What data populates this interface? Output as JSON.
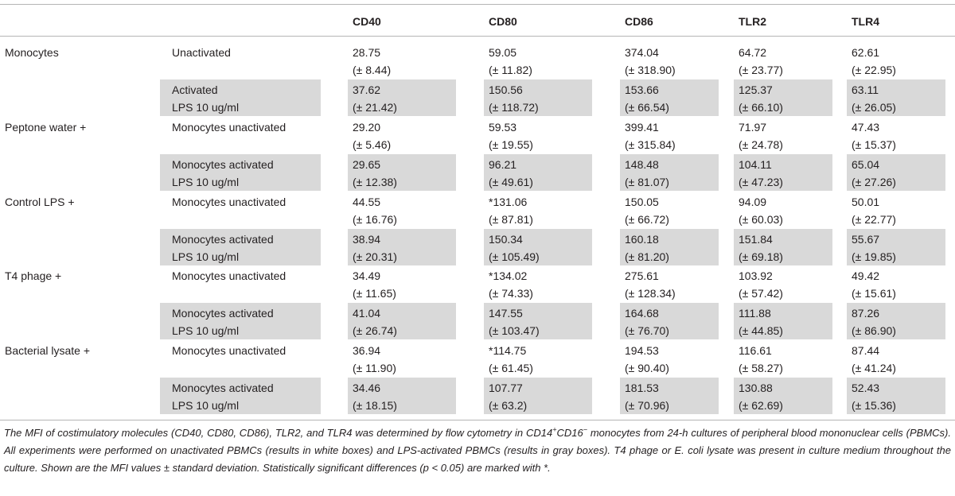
{
  "columns": [
    "CD40",
    "CD80",
    "CD86",
    "TLR2",
    "TLR4"
  ],
  "rows": [
    {
      "group": "Monocytes",
      "condition": [
        "Unactivated"
      ],
      "shaded": false,
      "values": [
        [
          "28.75",
          "(± 8.44)"
        ],
        [
          "59.05",
          "(± 11.82)"
        ],
        [
          "374.04",
          "(± 318.90)"
        ],
        [
          "64.72",
          "(± 23.77)"
        ],
        [
          "62.61",
          "(± 22.95)"
        ]
      ]
    },
    {
      "group": "",
      "condition": [
        "Activated",
        "LPS 10 ug/ml"
      ],
      "shaded": true,
      "values": [
        [
          "37.62",
          "(± 21.42)"
        ],
        [
          "150.56",
          "(± 118.72)"
        ],
        [
          "153.66",
          "(± 66.54)"
        ],
        [
          "125.37",
          "(± 66.10)"
        ],
        [
          "63.11",
          "(± 26.05)"
        ]
      ]
    },
    {
      "group": "Peptone water +",
      "condition": [
        "Monocytes unactivated"
      ],
      "shaded": false,
      "values": [
        [
          "29.20",
          "(± 5.46)"
        ],
        [
          "59.53",
          "(± 19.55)"
        ],
        [
          "399.41",
          "(± 315.84)"
        ],
        [
          "71.97",
          "(± 24.78)"
        ],
        [
          "47.43",
          "(± 15.37)"
        ]
      ]
    },
    {
      "group": "",
      "condition": [
        "Monocytes activated",
        "LPS 10 ug/ml"
      ],
      "shaded": true,
      "values": [
        [
          "29.65",
          "(± 12.38)"
        ],
        [
          "96.21",
          "(± 49.61)"
        ],
        [
          "148.48",
          "(± 81.07)"
        ],
        [
          "104.11",
          "(± 47.23)"
        ],
        [
          "65.04",
          "(± 27.26)"
        ]
      ]
    },
    {
      "group": "Control LPS +",
      "condition": [
        "Monocytes unactivated"
      ],
      "shaded": false,
      "values": [
        [
          "44.55",
          "(± 16.76)"
        ],
        [
          "*131.06",
          "(± 87.81)"
        ],
        [
          "150.05",
          "(± 66.72)"
        ],
        [
          "94.09",
          "(± 60.03)"
        ],
        [
          "50.01",
          "(± 22.77)"
        ]
      ]
    },
    {
      "group": "",
      "condition": [
        "Monocytes activated",
        "LPS 10 ug/ml"
      ],
      "shaded": true,
      "values": [
        [
          "38.94",
          "(± 20.31)"
        ],
        [
          "150.34",
          "(± 105.49)"
        ],
        [
          "160.18",
          "(± 81.20)"
        ],
        [
          "151.84",
          "(± 69.18)"
        ],
        [
          "55.67",
          "(± 19.85)"
        ]
      ]
    },
    {
      "group": "T4 phage +",
      "condition": [
        "Monocytes unactivated"
      ],
      "shaded": false,
      "values": [
        [
          "34.49",
          "(± 11.65)"
        ],
        [
          "*134.02",
          "(± 74.33)"
        ],
        [
          "275.61",
          "(± 128.34)"
        ],
        [
          "103.92",
          "(± 57.42)"
        ],
        [
          "49.42",
          "(± 15.61)"
        ]
      ]
    },
    {
      "group": "",
      "condition": [
        "Monocytes activated",
        "LPS 10 ug/ml"
      ],
      "shaded": true,
      "values": [
        [
          "41.04",
          "(± 26.74)"
        ],
        [
          "147.55",
          "(± 103.47)"
        ],
        [
          "164.68",
          "(± 76.70)"
        ],
        [
          "111.88",
          "(± 44.85)"
        ],
        [
          "87.26",
          "(± 86.90)"
        ]
      ]
    },
    {
      "group": "Bacterial lysate +",
      "condition": [
        "Monocytes unactivated"
      ],
      "shaded": false,
      "values": [
        [
          "36.94",
          "(± 11.90)"
        ],
        [
          "*114.75",
          "(± 61.45)"
        ],
        [
          "194.53",
          "(± 90.40)"
        ],
        [
          "116.61",
          "(± 58.27)"
        ],
        [
          "87.44",
          "(± 41.24)"
        ]
      ]
    },
    {
      "group": "",
      "condition": [
        "Monocytes activated",
        "LPS 10 ug/ml"
      ],
      "shaded": true,
      "values": [
        [
          "34.46",
          "(± 18.15)"
        ],
        [
          "107.77",
          "(± 63.2)"
        ],
        [
          "181.53",
          "(± 70.96)"
        ],
        [
          "130.88",
          "(± 62.69)"
        ],
        [
          "52.43",
          "(± 15.36)"
        ]
      ]
    }
  ],
  "caption": {
    "p1": "The MFI of costimulatory molecules (CD40, CD80, CD86), TLR2, and TLR4 was determined by flow cytometry in CD14",
    "sup1": "+",
    "p2": "CD16",
    "sup2": "−",
    "p3": " monocytes from 24-h cultures of peripheral blood mononuclear cells (PBMCs). All experiments were performed on unactivated PBMCs (results in white boxes) and LPS-activated PBMCs (results in gray boxes). T4 phage or E. coli lysate was present in culture medium throughout the culture. Shown are the MFI values ± standard deviation. Statistically significant differences (p < 0.05) are marked with *."
  }
}
